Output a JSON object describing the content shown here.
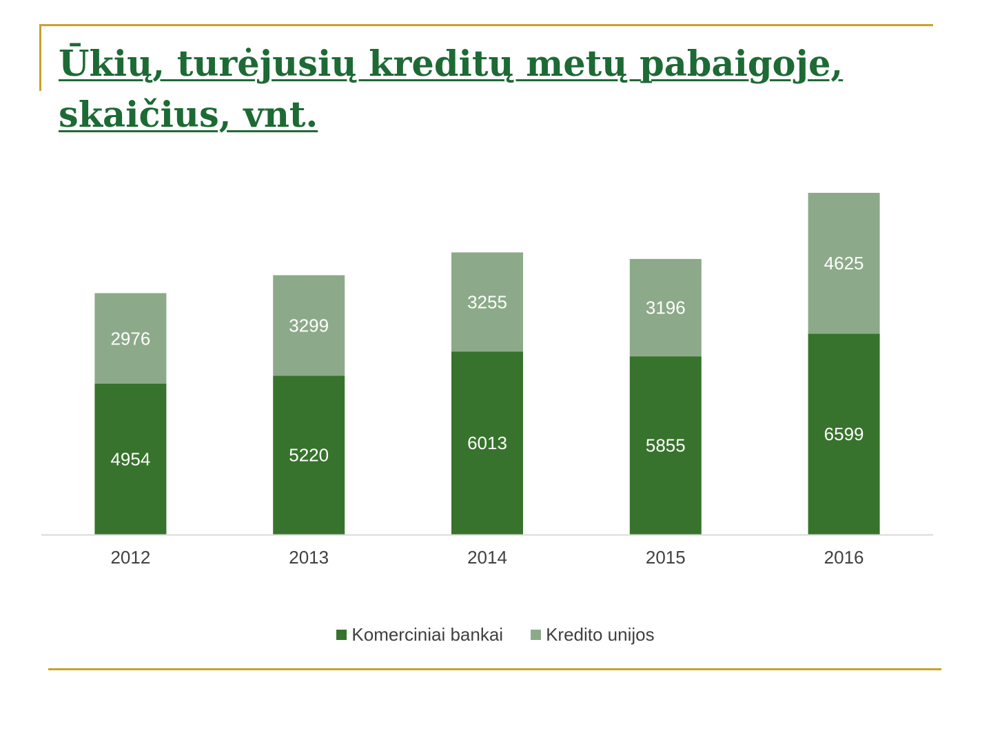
{
  "title_lines": [
    "Ūkių, turėjusių kreditų metų pabaigoje,",
    "skaičius, vnt."
  ],
  "colors": {
    "accent_line": "#c9a227",
    "title": "#1d6a35",
    "series_banks": "#37732c",
    "series_credit_unions": "#8caa89",
    "axis": "#d9d9d9",
    "tick_text": "#404040",
    "data_label": "#ffffff"
  },
  "chart_data": {
    "type": "bar",
    "stacked": true,
    "title": "Ūkių, turėjusių kreditų metų pabaigoje, skaičius, vnt.",
    "categories": [
      "2012",
      "2013",
      "2014",
      "2015",
      "2016"
    ],
    "series": [
      {
        "name": "Komerciniai bankai",
        "values": [
          4954,
          5220,
          6013,
          5855,
          6599
        ]
      },
      {
        "name": "Kredito unijos",
        "values": [
          2976,
          3299,
          3255,
          3196,
          4625
        ]
      }
    ],
    "xlabel": "",
    "ylabel": "",
    "ylim": [
      0,
      12000
    ],
    "grid": false,
    "data_labels": true,
    "legend_position": "bottom"
  }
}
